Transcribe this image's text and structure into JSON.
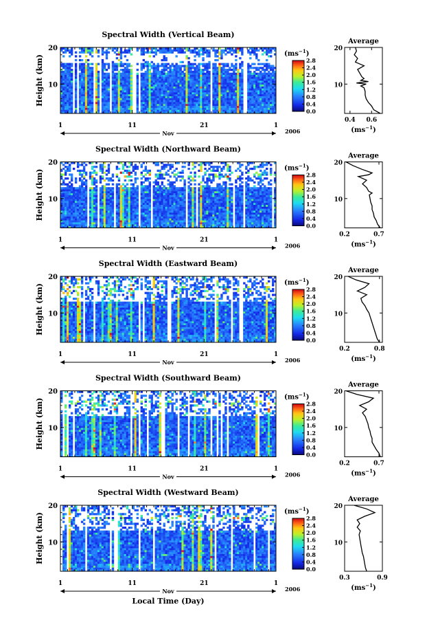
{
  "figure": {
    "xlabel": "Local Time (Day)",
    "month_label": "Nov",
    "year_label": "2006",
    "colorbar_unit_base": "(ms",
    "colorbar_unit_exp": "−1",
    "colorbar_unit_close": ")"
  },
  "chart_data": [
    {
      "type": "heatmap",
      "title": "Spectral Width (Vertical Beam)",
      "ylabel": "Height (km)",
      "xlabel": "",
      "x_ticks": [
        "1",
        "11",
        "21",
        "1"
      ],
      "y_ticks": [
        "10",
        "20"
      ],
      "ylim": [
        2,
        20
      ],
      "colorbar_ticks": [
        "0.0",
        "0.4",
        "0.8",
        "1.2",
        "1.6",
        "2.0",
        "2.4",
        "2.8"
      ],
      "colorbar_range": [
        0.0,
        2.8
      ],
      "seed": 11,
      "profile": {
        "title": "Average",
        "xlabel_base": "(ms",
        "xlabel_exp": "−1",
        "xlabel_close": ")",
        "x_ticks": [
          "0.4",
          "0.6"
        ],
        "x_tick_values": [
          0.4,
          0.6
        ],
        "xlim": [
          0.35,
          0.7
        ],
        "y_ticks": [
          "10",
          "20"
        ],
        "ylim": [
          2,
          20
        ],
        "heights": [
          2,
          3,
          4,
          5,
          6,
          7,
          8,
          9,
          9.5,
          10,
          10.3,
          10.7,
          11,
          11.5,
          12,
          13,
          14,
          15,
          16,
          17,
          18,
          19,
          20
        ],
        "values": [
          0.68,
          0.62,
          0.6,
          0.57,
          0.55,
          0.54,
          0.54,
          0.53,
          0.5,
          0.55,
          0.46,
          0.57,
          0.5,
          0.53,
          0.51,
          0.49,
          0.47,
          0.53,
          0.45,
          0.47,
          0.44,
          0.46,
          0.45
        ]
      }
    },
    {
      "type": "heatmap",
      "title": "Spectral Width (Northward Beam)",
      "ylabel": "Height (km)",
      "xlabel": "",
      "x_ticks": [
        "1",
        "11",
        "21",
        "1"
      ],
      "y_ticks": [
        "10",
        "20"
      ],
      "ylim": [
        2,
        20
      ],
      "colorbar_ticks": [
        "0.0",
        "0.4",
        "0.8",
        "1.2",
        "1.6",
        "2.0",
        "2.4",
        "2.8"
      ],
      "colorbar_range": [
        0.0,
        2.8
      ],
      "seed": 23,
      "profile": {
        "title": "Average",
        "xlabel_base": "(ms",
        "xlabel_exp": "−1",
        "xlabel_close": ")",
        "x_ticks": [
          "0.2",
          "0.7"
        ],
        "x_tick_values": [
          0.2,
          0.7
        ],
        "xlim": [
          0.2,
          0.75
        ],
        "y_ticks": [
          "10",
          "20"
        ],
        "ylim": [
          2,
          20
        ],
        "heights": [
          2,
          3,
          4,
          5,
          6,
          7,
          8,
          9,
          10,
          11,
          11.5,
          12,
          13,
          14,
          15,
          16,
          16.5,
          17,
          18,
          19,
          20
        ],
        "values": [
          0.72,
          0.68,
          0.66,
          0.63,
          0.62,
          0.6,
          0.6,
          0.58,
          0.57,
          0.56,
          0.6,
          0.55,
          0.52,
          0.46,
          0.52,
          0.4,
          0.55,
          0.6,
          0.45,
          0.32,
          0.22
        ]
      }
    },
    {
      "type": "heatmap",
      "title": "Spectral Width (Eastward Beam)",
      "ylabel": "Height (km)",
      "xlabel": "",
      "x_ticks": [
        "1",
        "11",
        "21",
        "1"
      ],
      "y_ticks": [
        "10",
        "20"
      ],
      "ylim": [
        2,
        20
      ],
      "colorbar_ticks": [
        "0.0",
        "0.4",
        "0.8",
        "1.2",
        "1.6",
        "2.0",
        "2.4",
        "2.8"
      ],
      "colorbar_range": [
        0.0,
        2.8
      ],
      "seed": 37,
      "profile": {
        "title": "Average",
        "xlabel_base": "(ms",
        "xlabel_exp": "−1",
        "xlabel_close": ")",
        "x_ticks": [
          "0.2",
          "0.8"
        ],
        "x_tick_values": [
          0.2,
          0.8
        ],
        "xlim": [
          0.2,
          0.85
        ],
        "y_ticks": [
          "10",
          "20"
        ],
        "ylim": [
          2,
          20
        ],
        "heights": [
          2,
          3,
          4,
          5,
          6,
          7,
          8,
          9,
          10,
          11,
          12,
          13,
          14,
          15,
          16,
          17,
          18,
          19,
          20
        ],
        "values": [
          0.8,
          0.76,
          0.74,
          0.72,
          0.7,
          0.68,
          0.66,
          0.64,
          0.62,
          0.58,
          0.55,
          0.5,
          0.48,
          0.58,
          0.42,
          0.55,
          0.62,
          0.4,
          0.26
        ]
      }
    },
    {
      "type": "heatmap",
      "title": "Spectral Width (Southward Beam)",
      "ylabel": "Height (km)",
      "xlabel": "",
      "x_ticks": [
        "1",
        "11",
        "21",
        "1"
      ],
      "y_ticks": [
        "10",
        "20"
      ],
      "ylim": [
        2,
        20
      ],
      "colorbar_ticks": [
        "0.0",
        "0.4",
        "0.8",
        "1.2",
        "1.6",
        "2.0",
        "2.4",
        "2.8"
      ],
      "colorbar_range": [
        0.0,
        2.8
      ],
      "seed": 53,
      "profile": {
        "title": "Average",
        "xlabel_base": "(ms",
        "xlabel_exp": "−1",
        "xlabel_close": ")",
        "x_ticks": [
          "0.2",
          "0.7"
        ],
        "x_tick_values": [
          0.2,
          0.7
        ],
        "xlim": [
          0.2,
          0.75
        ],
        "y_ticks": [
          "10",
          "20"
        ],
        "ylim": [
          2,
          20
        ],
        "heights": [
          2,
          3,
          4,
          5,
          6,
          7,
          8,
          9,
          10,
          11,
          12,
          13,
          14,
          15,
          16,
          17,
          18,
          19,
          20
        ],
        "values": [
          0.72,
          0.7,
          0.66,
          0.63,
          0.6,
          0.6,
          0.58,
          0.57,
          0.55,
          0.54,
          0.52,
          0.5,
          0.46,
          0.52,
          0.42,
          0.55,
          0.62,
          0.38,
          0.22
        ]
      }
    },
    {
      "type": "heatmap",
      "title": "Spectral Width (Westward Beam)",
      "ylabel": "Height (km)",
      "xlabel": "Local Time (Day)",
      "x_ticks": [
        "1",
        "11",
        "21",
        "1"
      ],
      "y_ticks": [
        "10",
        "20"
      ],
      "ylim": [
        2,
        20
      ],
      "colorbar_ticks": [
        "0.0",
        "0.4",
        "0.8",
        "1.2",
        "1.6",
        "2.0",
        "2.4",
        "2.8"
      ],
      "colorbar_range": [
        0.0,
        2.8
      ],
      "seed": 71,
      "profile": {
        "title": "Average",
        "xlabel_base": "(ms",
        "xlabel_exp": "−1",
        "xlabel_close": ")",
        "x_ticks": [
          "0.3",
          "0.9"
        ],
        "x_tick_values": [
          0.3,
          0.9
        ],
        "xlim": [
          0.3,
          0.9
        ],
        "y_ticks": [
          "10",
          "20"
        ],
        "ylim": [
          2,
          20
        ],
        "heights": [
          2,
          3,
          4,
          5,
          6,
          7,
          8,
          9,
          10,
          11,
          12,
          13,
          14,
          15,
          16,
          17,
          18,
          19,
          20
        ],
        "values": [
          0.65,
          0.63,
          0.62,
          0.61,
          0.6,
          0.58,
          0.57,
          0.56,
          0.55,
          0.54,
          0.53,
          0.55,
          0.5,
          0.54,
          0.5,
          0.62,
          0.78,
          0.65,
          0.45
        ]
      }
    }
  ]
}
